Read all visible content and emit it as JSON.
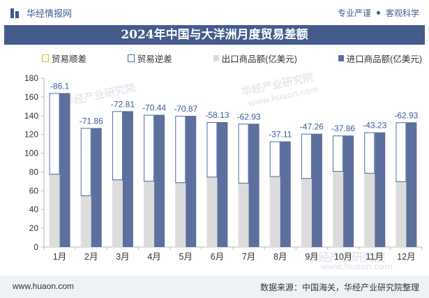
{
  "header": {
    "brand": "华经情报网",
    "slogan_left": "专业严谨",
    "slogan_right": "客观科学"
  },
  "colors": {
    "surplus_border": "#e3b820",
    "deficit_border": "#4a6ca0",
    "export_fill": "#dcdcdc",
    "import_fill": "#5d6f9c",
    "label_color": "#3b5b97",
    "title_bg": "#445b8c"
  },
  "legend": {
    "surplus": "贸易顺差",
    "deficit": "贸易逆差",
    "export": "出口商品额(亿美元)",
    "import": "进口商品额(亿美元)"
  },
  "chart_data": {
    "type": "bar",
    "title": "2024年中国与大洋洲月度贸易差额",
    "categories": [
      "1月",
      "2月",
      "3月",
      "4月",
      "5月",
      "6月",
      "7月",
      "8月",
      "9月",
      "10月",
      "11月",
      "12月"
    ],
    "series": [
      {
        "name": "出口商品额(亿美元)",
        "values": [
          78,
          55,
          72,
          70.5,
          69,
          75,
          68.5,
          75.5,
          73.5,
          81,
          79,
          70
        ]
      },
      {
        "name": "进口商品额(亿美元)",
        "values": [
          164.1,
          126.86,
          144.81,
          140.94,
          139.87,
          133.13,
          131.43,
          112.61,
          120.76,
          118.86,
          122.23,
          132.93
        ]
      },
      {
        "name": "贸易逆差",
        "values": [
          -86.1,
          -71.86,
          -72.81,
          -70.44,
          -70.87,
          -58.13,
          -62.93,
          -37.11,
          -47.26,
          -37.86,
          -43.23,
          -62.93
        ]
      }
    ],
    "data_labels": [
      "-86.1",
      "-71.86",
      "-72.81",
      "-70.44",
      "-70.87",
      "-58.13",
      "-62.93",
      "-37.11",
      "-47.26",
      "-37.86",
      "-43.23",
      "-62.93"
    ],
    "ylim": [
      0,
      180
    ],
    "yticks": [
      0,
      20,
      40,
      60,
      80,
      100,
      120,
      140,
      160,
      180
    ],
    "grid": false,
    "legend_position": "top"
  },
  "watermarks": [
    "华经产业研究院",
    "www.huaon.com"
  ],
  "footer": {
    "website": "www.huaon.com",
    "source": "数据来源：中国海关，华经产业研究院整理"
  }
}
